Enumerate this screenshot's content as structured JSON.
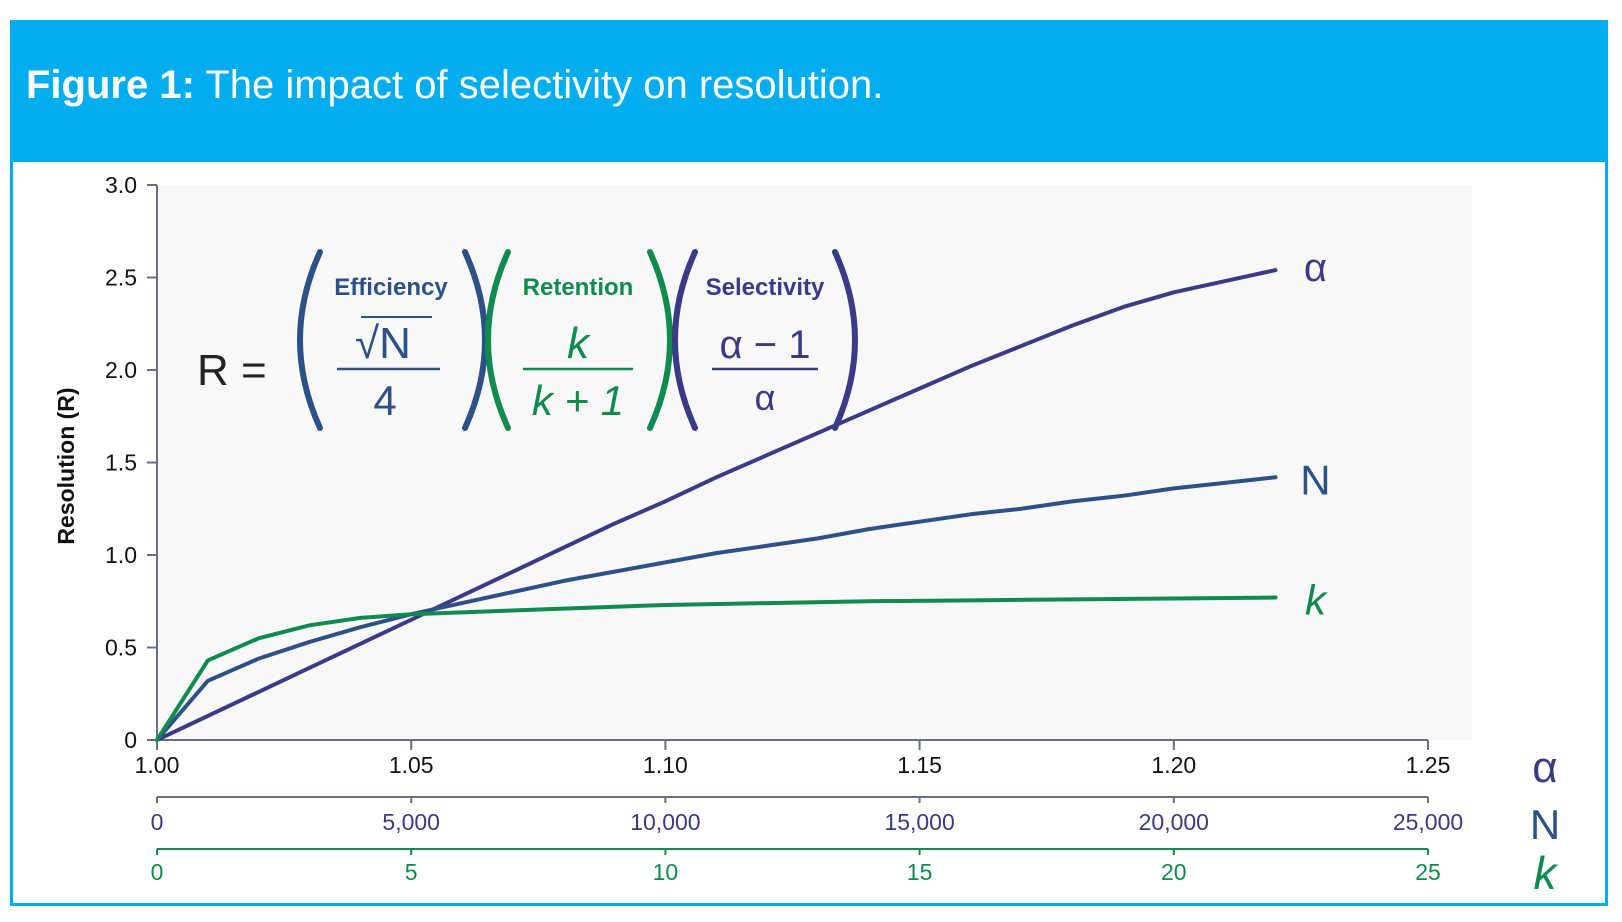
{
  "figure": {
    "label": "Figure 1:",
    "caption": "The impact of selectivity on resolution."
  },
  "colors": {
    "banner": "#00adef",
    "alpha": "#3b3a86",
    "N": "#2d5187",
    "k": "#108b4f",
    "axis": "#6a6f7f",
    "selectivity_title": "#3b3a86"
  },
  "equation": {
    "lhs": "R =",
    "efficiency": {
      "title": "Efficiency",
      "numerator": "√N",
      "denominator": "4"
    },
    "retention": {
      "title": "Retention",
      "numerator": "k",
      "denominator": "k + 1"
    },
    "selectivity": {
      "title": "Selectivity",
      "numerator": "α − 1",
      "denominator": "α"
    }
  },
  "chart_data": {
    "type": "line",
    "title": "",
    "ylabel": "Resolution (R)",
    "ylim": [
      0,
      3.0
    ],
    "yticks": [
      "0",
      "0.5",
      "1.0",
      "1.5",
      "2.0",
      "2.5",
      "3.0"
    ],
    "grid": false,
    "x_axes": [
      {
        "name": "α",
        "range": [
          1.0,
          1.25
        ],
        "ticks": [
          "1.00",
          "1.05",
          "1.10",
          "1.15",
          "1.20",
          "1.25"
        ]
      },
      {
        "name": "N",
        "range": [
          0,
          25000
        ],
        "ticks": [
          "0",
          "5,000",
          "10,000",
          "15,000",
          "20,000",
          "25,000"
        ]
      },
      {
        "name": "k",
        "range": [
          0,
          25
        ],
        "ticks": [
          "0",
          "5",
          "10",
          "15",
          "20",
          "25"
        ]
      }
    ],
    "series": [
      {
        "name": "α",
        "label": "α",
        "x": [
          1.0,
          1.01,
          1.02,
          1.03,
          1.04,
          1.05,
          1.06,
          1.07,
          1.08,
          1.09,
          1.1,
          1.11,
          1.12,
          1.13,
          1.14,
          1.15,
          1.16,
          1.17,
          1.18,
          1.19,
          1.2,
          1.21,
          1.22
        ],
        "y": [
          0.0,
          0.13,
          0.26,
          0.39,
          0.52,
          0.65,
          0.78,
          0.91,
          1.04,
          1.17,
          1.29,
          1.42,
          1.54,
          1.66,
          1.78,
          1.9,
          2.02,
          2.13,
          2.24,
          2.34,
          2.42,
          2.48,
          2.54
        ]
      },
      {
        "name": "N",
        "label": "N",
        "x": [
          1.0,
          1.01,
          1.02,
          1.03,
          1.04,
          1.05,
          1.06,
          1.07,
          1.08,
          1.09,
          1.1,
          1.11,
          1.12,
          1.13,
          1.14,
          1.15,
          1.16,
          1.17,
          1.18,
          1.19,
          1.2,
          1.21,
          1.22
        ],
        "y": [
          0.0,
          0.32,
          0.44,
          0.53,
          0.61,
          0.68,
          0.74,
          0.8,
          0.86,
          0.91,
          0.96,
          1.01,
          1.05,
          1.09,
          1.14,
          1.18,
          1.22,
          1.25,
          1.29,
          1.32,
          1.36,
          1.39,
          1.42
        ]
      },
      {
        "name": "k",
        "label": "k",
        "x": [
          1.0,
          1.01,
          1.02,
          1.03,
          1.04,
          1.05,
          1.06,
          1.08,
          1.1,
          1.12,
          1.14,
          1.16,
          1.18,
          1.2,
          1.22
        ],
        "y": [
          0.0,
          0.43,
          0.55,
          0.62,
          0.66,
          0.68,
          0.69,
          0.71,
          0.73,
          0.74,
          0.75,
          0.755,
          0.76,
          0.765,
          0.77
        ]
      }
    ]
  }
}
